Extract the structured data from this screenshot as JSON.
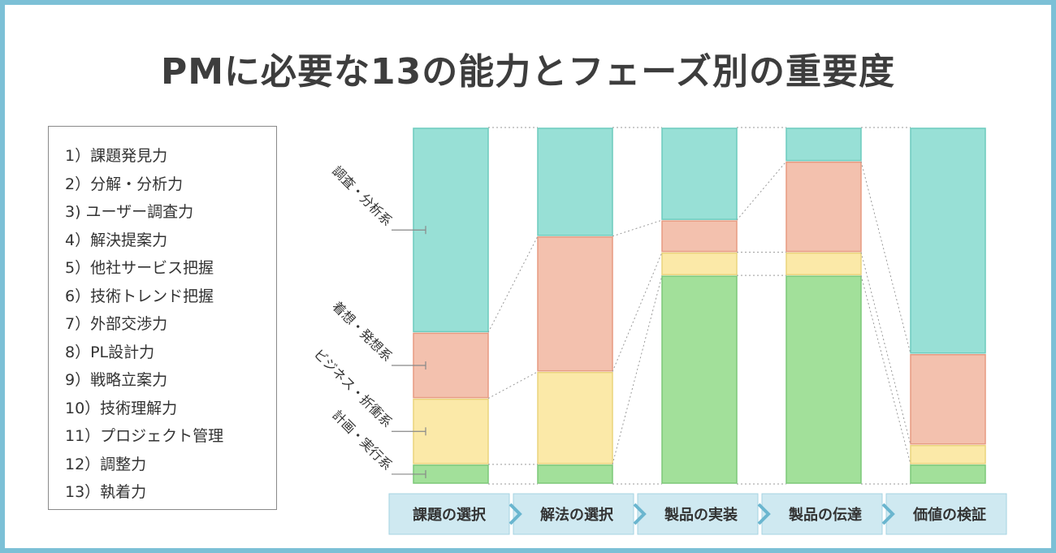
{
  "title": "PMに必要な13の能力とフェーズ別の重要度",
  "legend_items": [
    "1）課題発見力",
    "2）分解・分析力",
    "3) ユーザー調査力",
    "4）解決提案力",
    "5）他社サービス把握",
    "6）技術トレンド把握",
    "7）外部交渉力",
    "8）PL設計力",
    "9）戦略立案力",
    "10）技術理解力",
    "11）プロジェクト管理",
    "12）調整力",
    "13）執着力"
  ],
  "colors": {
    "frame": "#7cc0d6",
    "phase_box": "#cfe9f1",
    "phase_arrow": "#6ab6cf"
  },
  "chart_data": {
    "type": "bar",
    "stacked": true,
    "normalized_100": true,
    "categories": [
      "課題の選択",
      "解法の選択",
      "製品の実装",
      "製品の伝達",
      "価値の検証"
    ],
    "group_labels": [
      "調査・分析系",
      "着想・発想系",
      "ビジネス・折衝系",
      "計画・実行系"
    ],
    "series": [
      {
        "color": "#a2e09a",
        "stroke": "#7cc878",
        "values": [
          5.5,
          5.5,
          58.5,
          58.5,
          5.5
        ]
      },
      {
        "color": "#fbe9a8",
        "stroke": "#ead47c",
        "values": [
          18.5,
          26,
          6.5,
          6.5,
          5.5
        ]
      },
      {
        "color": "#f3c1ae",
        "stroke": "#e79a80",
        "values": [
          18.5,
          38,
          9,
          25.5,
          25.5
        ]
      },
      {
        "color": "#98e0d6",
        "stroke": "#6ccbbd",
        "values": [
          57.5,
          30.5,
          26,
          9.5,
          63.5
        ]
      }
    ],
    "ylim": [
      0,
      100
    ],
    "grid": false,
    "legend": "left"
  }
}
